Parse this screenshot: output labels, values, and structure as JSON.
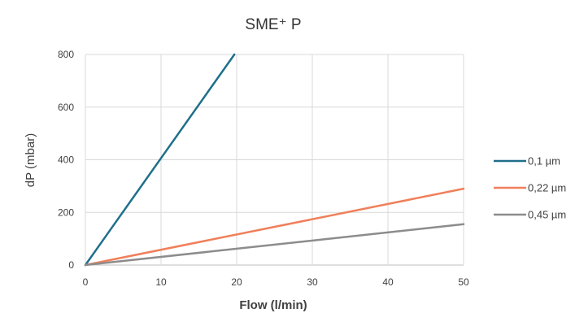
{
  "chart_data": {
    "type": "line",
    "title": "SME⁺ P",
    "xlabel": "Flow (l/min)",
    "ylabel": "dP (mbar)",
    "xlim": [
      0,
      50
    ],
    "ylim": [
      0,
      800
    ],
    "x_ticks": [
      0,
      10,
      20,
      30,
      40,
      50
    ],
    "y_ticks": [
      0,
      200,
      400,
      600,
      800
    ],
    "grid": true,
    "legend_position": "right",
    "series": [
      {
        "name": "0,1 µm",
        "color": "#1f6f8b",
        "points": [
          [
            0,
            0
          ],
          [
            19.7,
            800
          ]
        ]
      },
      {
        "name": "0,22 µm",
        "color": "#f07f5a",
        "points": [
          [
            0,
            0
          ],
          [
            50,
            290
          ]
        ]
      },
      {
        "name": "0,45 µm",
        "color": "#8c8c8c",
        "points": [
          [
            0,
            0
          ],
          [
            50,
            155
          ]
        ]
      }
    ]
  }
}
